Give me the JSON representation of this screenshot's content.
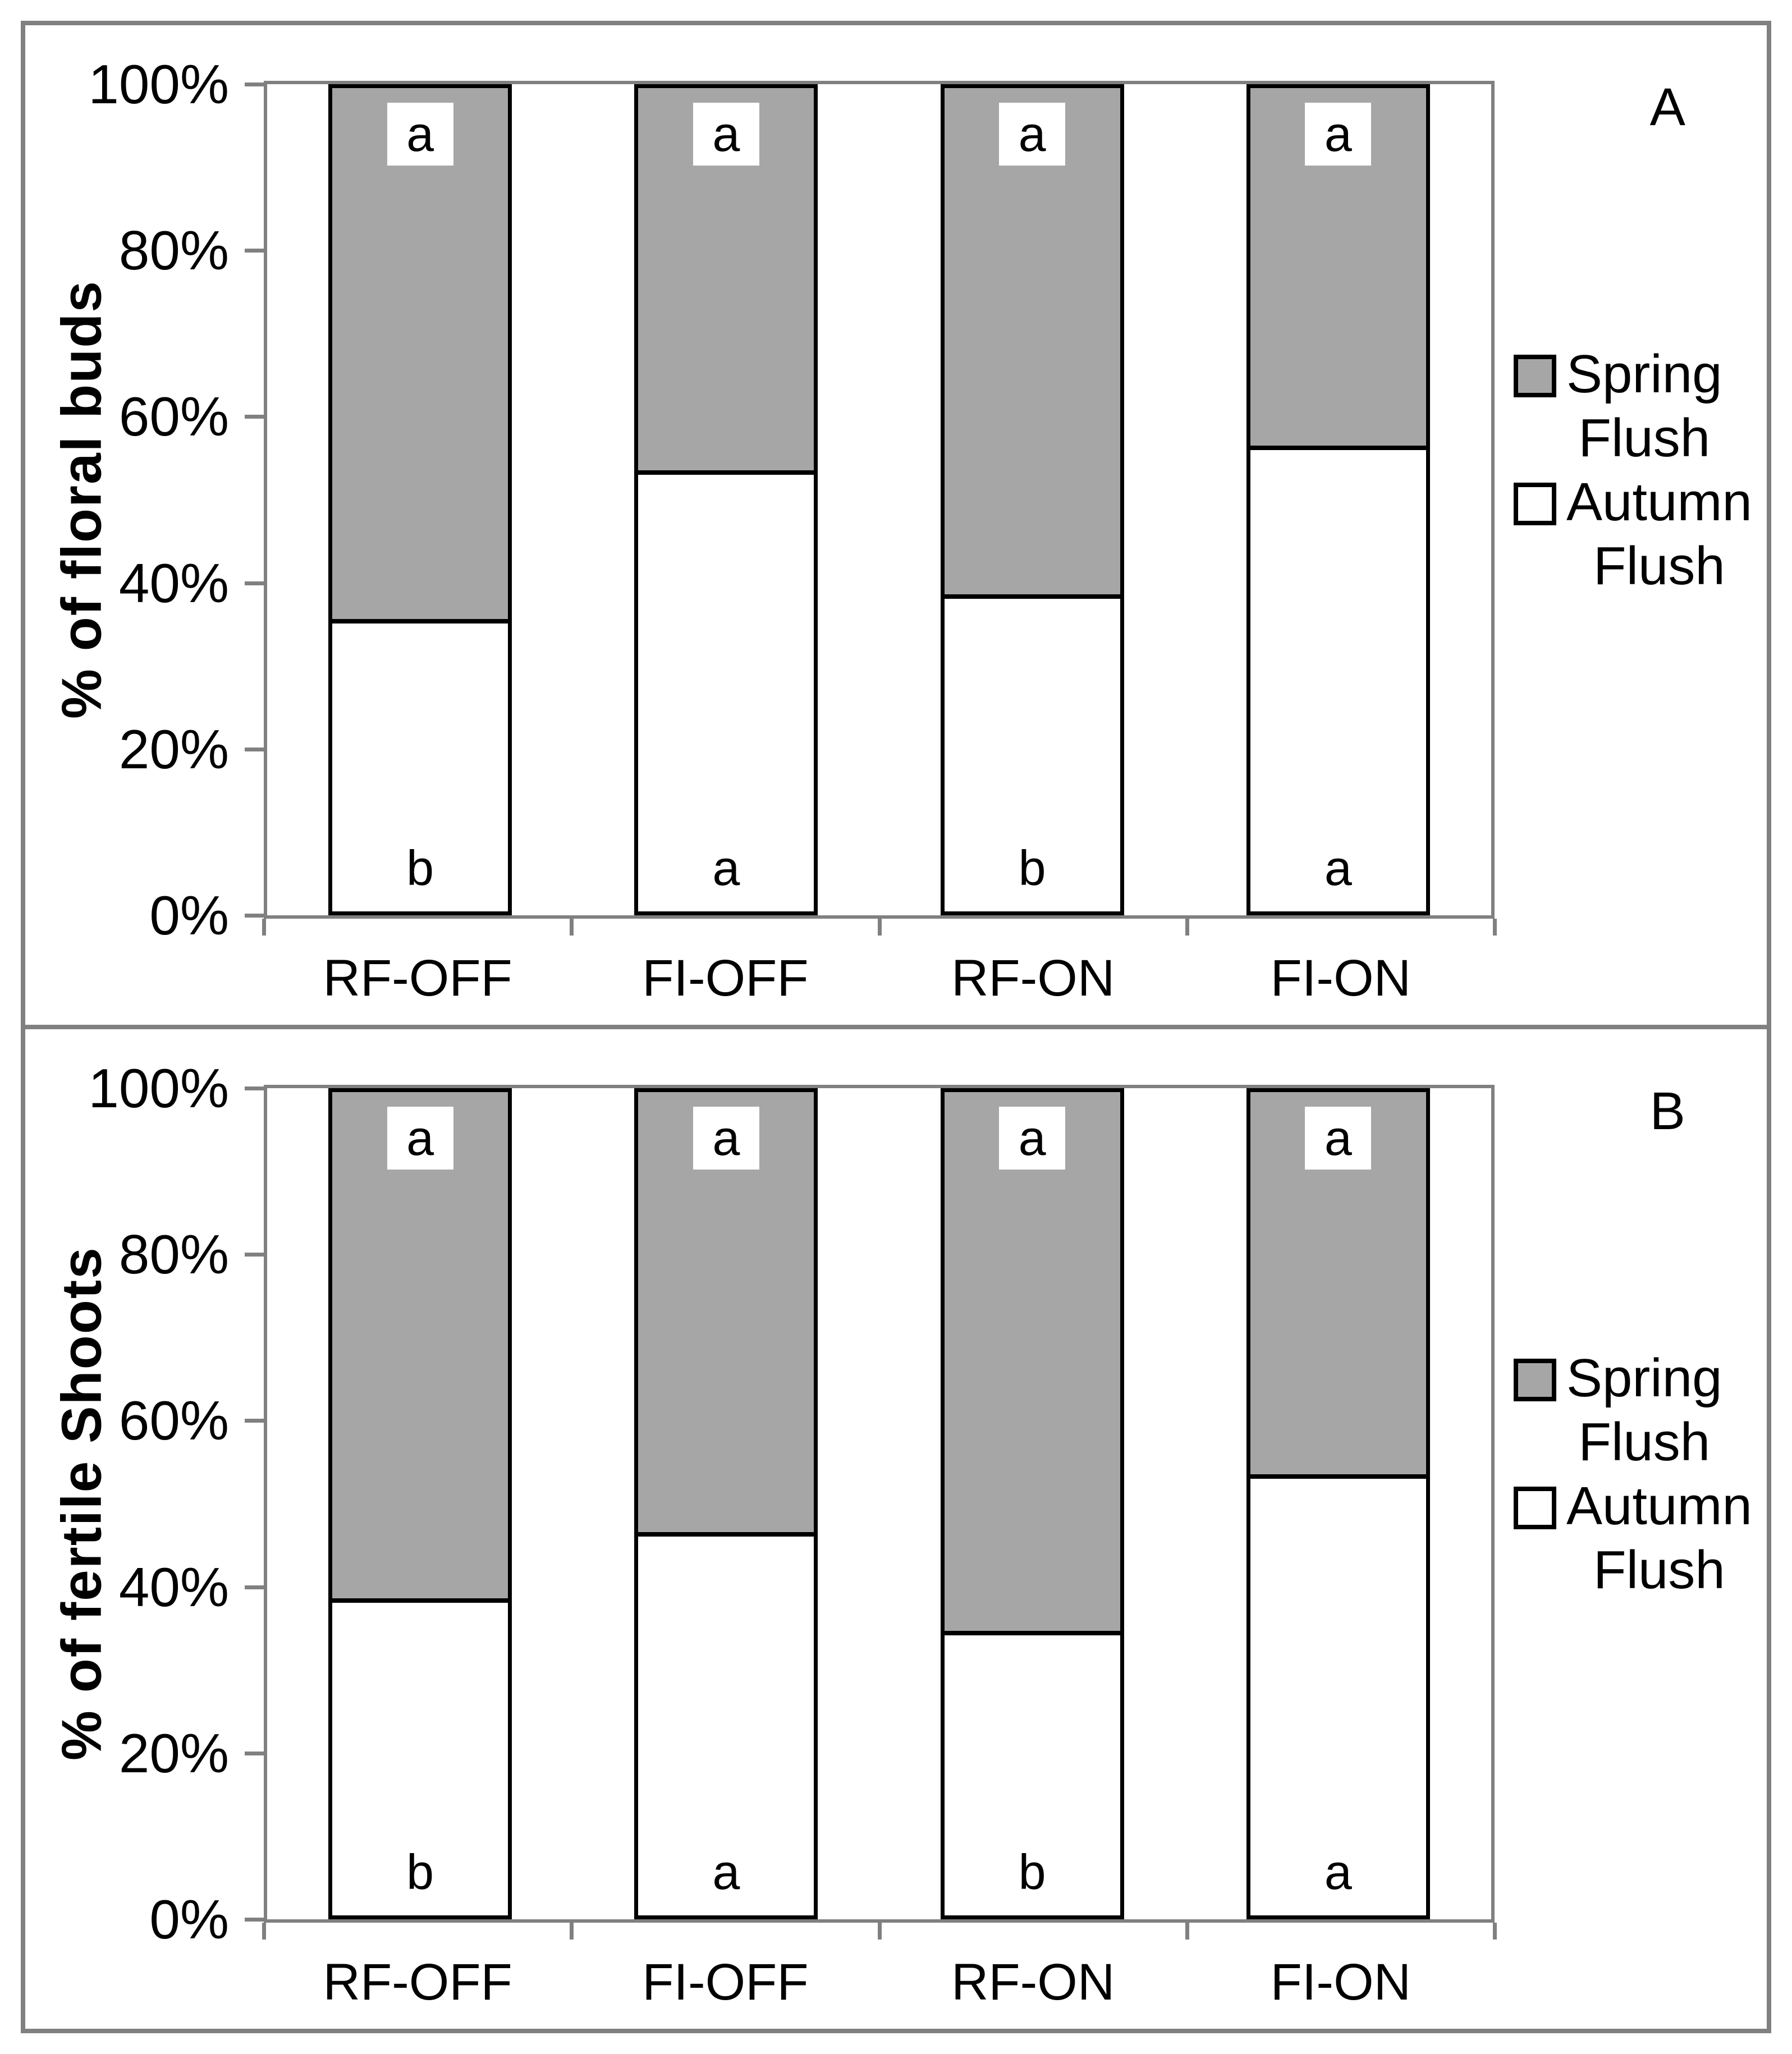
{
  "colors": {
    "spring_flush_fill": "#A6A6A6",
    "autumn_flush_fill": "#FFFFFF",
    "bar_border": "#000000",
    "axis_gray": "#808080",
    "frame_gray": "#808080",
    "background": "#FFFFFF",
    "text": "#000000"
  },
  "chart_data": [
    {
      "type": "bar",
      "stacked": true,
      "units": "percent",
      "panel_label": "A",
      "title": "",
      "xlabel": "",
      "ylabel": "% of floral buds",
      "ylim": [
        0,
        100
      ],
      "grid": false,
      "yticks": [
        "0%",
        "20%",
        "40%",
        "60%",
        "80%",
        "100%"
      ],
      "categories": [
        "RF-OFF",
        "FI-OFF",
        "RF-ON",
        "FI-ON"
      ],
      "series": [
        {
          "name": "Autumn Flush",
          "fill": "#FFFFFF",
          "values": [
            35,
            53,
            38,
            56
          ],
          "sig_letters": [
            "b",
            "a",
            "b",
            "a"
          ]
        },
        {
          "name": "Spring Flush",
          "fill": "#A6A6A6",
          "values": [
            65,
            47,
            62,
            44
          ],
          "sig_letters": [
            "a",
            "a",
            "a",
            "a"
          ]
        }
      ],
      "legend_position": "right",
      "legend": [
        {
          "fill": "#A6A6A6",
          "label_lines": [
            "Spring",
            "Flush"
          ]
        },
        {
          "fill": "#FFFFFF",
          "label_lines": [
            "Autumn",
            "Flush"
          ]
        }
      ]
    },
    {
      "type": "bar",
      "stacked": true,
      "units": "percent",
      "panel_label": "B",
      "title": "",
      "xlabel": "",
      "ylabel": "% of fertile Shoots",
      "ylim": [
        0,
        100
      ],
      "grid": false,
      "yticks": [
        "0%",
        "20%",
        "40%",
        "60%",
        "80%",
        "100%"
      ],
      "categories": [
        "RF-OFF",
        "FI-OFF",
        "RF-ON",
        "FI-ON"
      ],
      "series": [
        {
          "name": "Autumn Flush",
          "fill": "#FFFFFF",
          "values": [
            38,
            46,
            34,
            53
          ],
          "sig_letters": [
            "b",
            "a",
            "b",
            "a"
          ]
        },
        {
          "name": "Spring Flush",
          "fill": "#A6A6A6",
          "values": [
            62,
            54,
            66,
            47
          ],
          "sig_letters": [
            "a",
            "a",
            "a",
            "a"
          ]
        }
      ],
      "legend_position": "right",
      "legend": [
        {
          "fill": "#A6A6A6",
          "label_lines": [
            "Spring",
            "Flush"
          ]
        },
        {
          "fill": "#FFFFFF",
          "label_lines": [
            "Autumn",
            "Flush"
          ]
        }
      ]
    }
  ]
}
